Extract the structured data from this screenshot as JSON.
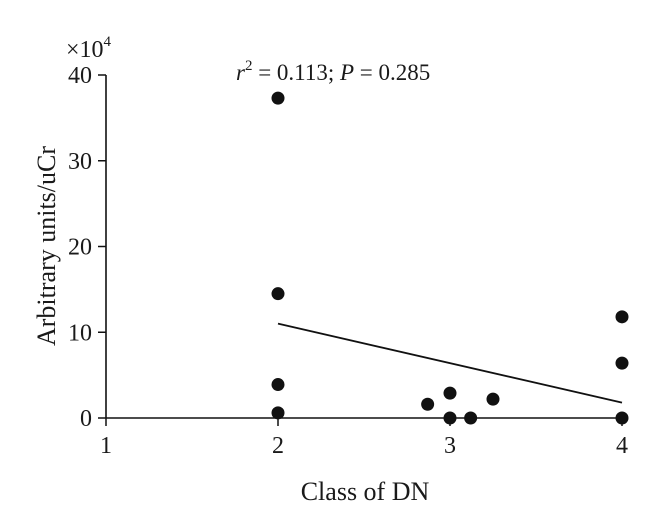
{
  "chart_data": {
    "type": "scatter",
    "title": "",
    "xlabel": "Class of DN",
    "ylabel": "Arbitrary units/uCr",
    "y_scale_multiplier": "×10",
    "y_scale_exponent": "4",
    "annotation": {
      "r_symbol": "r",
      "r_exponent": "2",
      "r_value": " = 0.113; ",
      "p_symbol": "P",
      "p_value": " = 0.285"
    },
    "xlim": [
      1,
      4
    ],
    "ylim": [
      0,
      40
    ],
    "x_ticks": [
      1,
      2,
      3,
      4
    ],
    "x_tick_labels": [
      "1",
      "2",
      "3",
      "4"
    ],
    "y_ticks": [
      0,
      10,
      20,
      30,
      40
    ],
    "y_tick_labels": [
      "0",
      "10",
      "20",
      "30",
      "40"
    ],
    "grid": false,
    "points": [
      {
        "x": 2.0,
        "y": 37.3
      },
      {
        "x": 2.0,
        "y": 14.5
      },
      {
        "x": 2.0,
        "y": 3.9
      },
      {
        "x": 2.0,
        "y": 0.6
      },
      {
        "x": 2.87,
        "y": 1.6
      },
      {
        "x": 3.0,
        "y": 2.9
      },
      {
        "x": 3.0,
        "y": 0.0
      },
      {
        "x": 3.12,
        "y": 0.0
      },
      {
        "x": 3.25,
        "y": 2.2
      },
      {
        "x": 4.0,
        "y": 11.8
      },
      {
        "x": 4.0,
        "y": 6.4
      },
      {
        "x": 4.0,
        "y": 0.0
      }
    ],
    "trendline": {
      "x": [
        2,
        4
      ],
      "y": [
        11.0,
        1.8
      ]
    },
    "marker_color": "#111111",
    "line_color": "#111111"
  }
}
